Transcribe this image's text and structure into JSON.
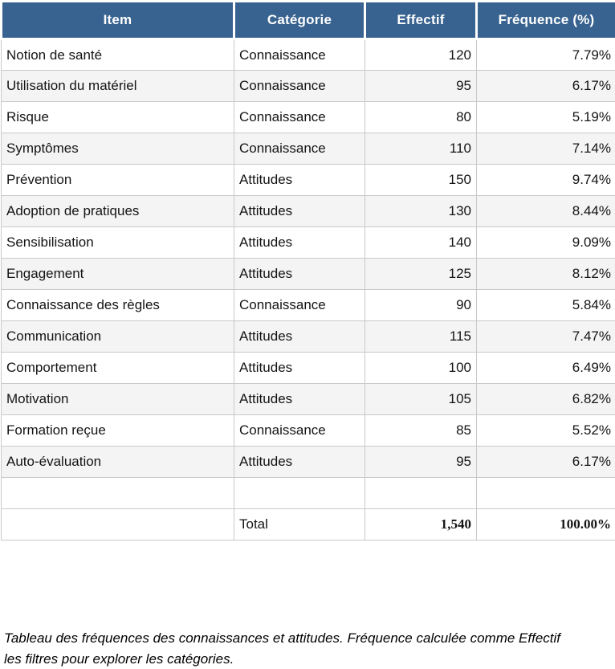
{
  "table": {
    "headers": [
      "Item",
      "Catégorie",
      "Effectif",
      "Fréquence (%)"
    ],
    "rows": [
      {
        "item": "Notion de santé",
        "categorie": "Connaissance",
        "effectif": "120",
        "frequence": "7.79%"
      },
      {
        "item": "Utilisation du matériel",
        "categorie": "Connaissance",
        "effectif": "95",
        "frequence": "6.17%"
      },
      {
        "item": "Risque",
        "categorie": "Connaissance",
        "effectif": "80",
        "frequence": "5.19%"
      },
      {
        "item": "Symptômes",
        "categorie": "Connaissance",
        "effectif": "110",
        "frequence": "7.14%"
      },
      {
        "item": "Prévention",
        "categorie": "Attitudes",
        "effectif": "150",
        "frequence": "9.74%"
      },
      {
        "item": "Adoption de pratiques",
        "categorie": "Attitudes",
        "effectif": "130",
        "frequence": "8.44%"
      },
      {
        "item": "Sensibilisation",
        "categorie": "Attitudes",
        "effectif": "140",
        "frequence": "9.09%"
      },
      {
        "item": "Engagement",
        "categorie": "Attitudes",
        "effectif": "125",
        "frequence": "8.12%"
      },
      {
        "item": "Connaissance des règles",
        "categorie": "Connaissance",
        "effectif": "90",
        "frequence": "5.84%"
      },
      {
        "item": "Communication",
        "categorie": "Attitudes",
        "effectif": "115",
        "frequence": "7.47%"
      },
      {
        "item": "Comportement",
        "categorie": "Attitudes",
        "effectif": "100",
        "frequence": "6.49%"
      },
      {
        "item": "Motivation",
        "categorie": "Attitudes",
        "effectif": "105",
        "frequence": "6.82%"
      },
      {
        "item": "Formation reçue",
        "categorie": "Connaissance",
        "effectif": "85",
        "frequence": "5.52%"
      },
      {
        "item": "Auto-évaluation",
        "categorie": "Attitudes",
        "effectif": "95",
        "frequence": "6.17%"
      }
    ],
    "total": {
      "label": "Total",
      "effectif": "1,540",
      "frequence": "100.00%"
    }
  },
  "caption": {
    "line1": "Tableau des fréquences des connaissances et attitudes. Fréquence calculée comme Effectif",
    "line2": "les filtres pour explorer les catégories."
  },
  "colors": {
    "header_bg": "#38628f",
    "header_text": "#ffffff",
    "row_alt_bg": "#f4f4f4",
    "grid": "#c9c9c9"
  },
  "chart_data": {
    "type": "table",
    "title": "Tableau des fréquences des connaissances et attitudes",
    "columns": [
      "Item",
      "Catégorie",
      "Effectif",
      "Fréquence (%)"
    ],
    "rows": [
      [
        "Notion de santé",
        "Connaissance",
        120,
        7.79
      ],
      [
        "Utilisation du matériel",
        "Connaissance",
        95,
        6.17
      ],
      [
        "Risque",
        "Connaissance",
        80,
        5.19
      ],
      [
        "Symptômes",
        "Connaissance",
        110,
        7.14
      ],
      [
        "Prévention",
        "Attitudes",
        150,
        9.74
      ],
      [
        "Adoption de pratiques",
        "Attitudes",
        130,
        8.44
      ],
      [
        "Sensibilisation",
        "Attitudes",
        140,
        9.09
      ],
      [
        "Engagement",
        "Attitudes",
        125,
        8.12
      ],
      [
        "Connaissance des règles",
        "Connaissance",
        90,
        5.84
      ],
      [
        "Communication",
        "Attitudes",
        115,
        7.47
      ],
      [
        "Comportement",
        "Attitudes",
        100,
        6.49
      ],
      [
        "Motivation",
        "Attitudes",
        105,
        6.82
      ],
      [
        "Formation reçue",
        "Connaissance",
        85,
        5.52
      ],
      [
        "Auto-évaluation",
        "Attitudes",
        95,
        6.17
      ]
    ],
    "total_row": [
      "",
      "Total",
      1540,
      100.0
    ]
  }
}
